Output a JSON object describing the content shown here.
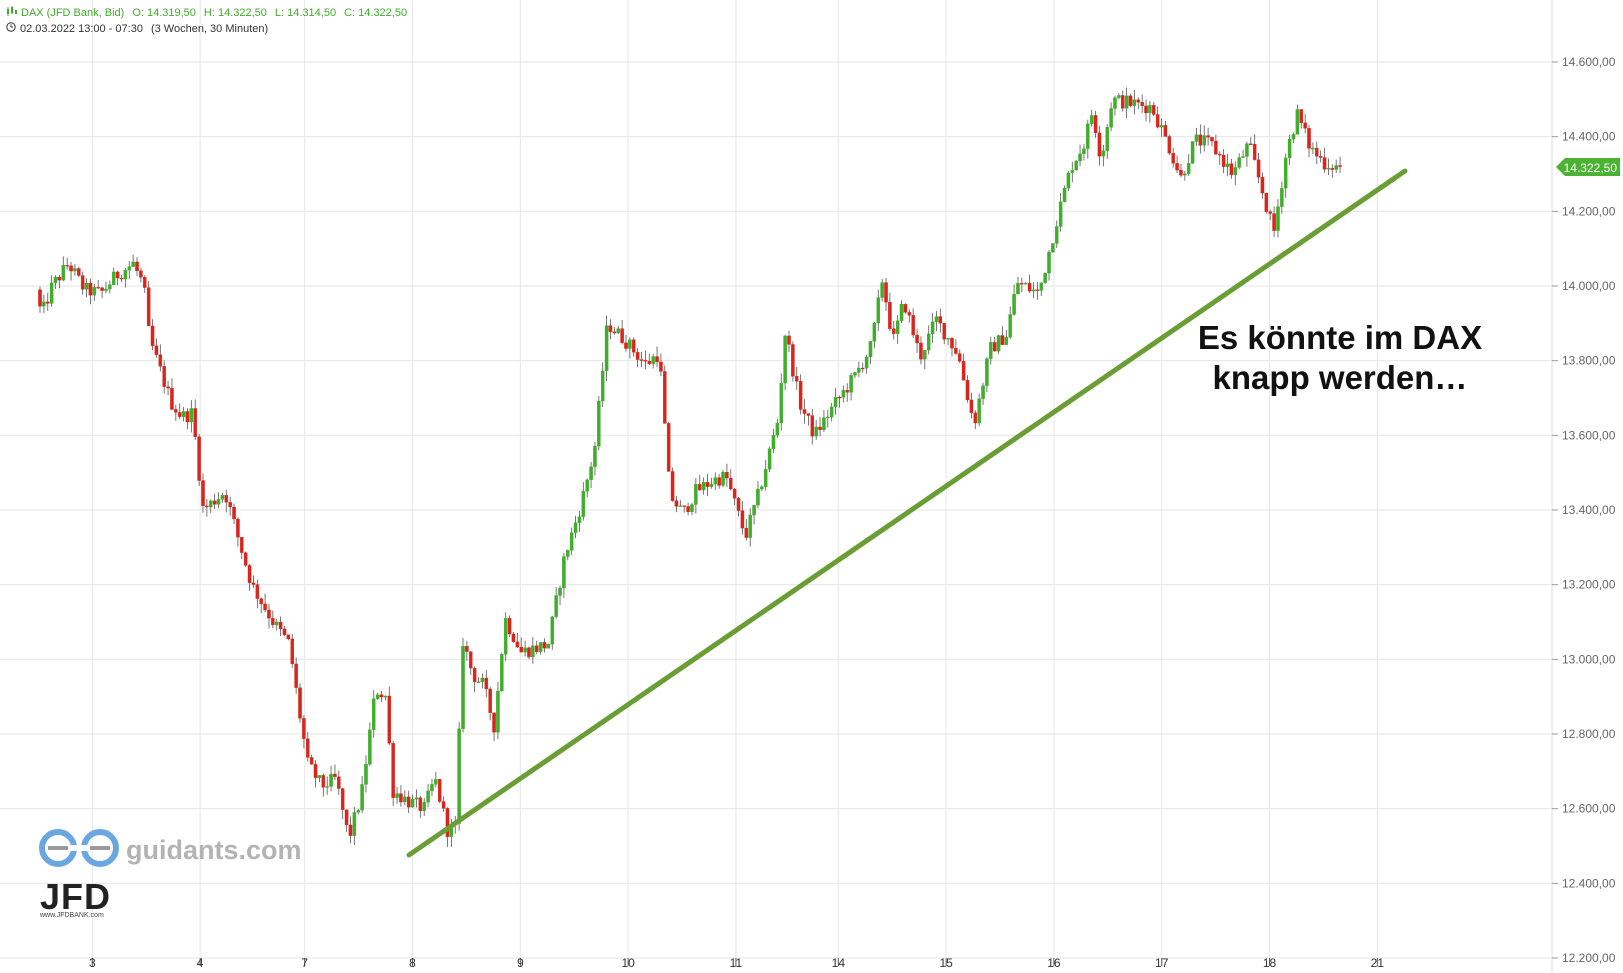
{
  "header": {
    "icon": "candlestick-chart-icon",
    "instrument": "DAX (JFD Bank, Bid)",
    "open": "O: 14.319,50",
    "high": "H: 14.322,50",
    "low": "L: 14.314,50",
    "close": "C: 14.322,50",
    "clock_icon": "clock-icon",
    "range": "02.03.2022 13:00 - 07:30",
    "period": "(3 Wochen, 30 Minuten)"
  },
  "annotation": {
    "line1": "Es könnte im DAX",
    "line2": "knapp werden…"
  },
  "watermark": {
    "site": "guidants.com",
    "brand": "JFD",
    "brand_sub": "www.JFDBANK.com"
  },
  "colors": {
    "up": "#3fae2a",
    "down": "#d9261c",
    "trendline": "#6a9e35",
    "grid": "#e6e6e6",
    "price_tag": "#4cb233"
  },
  "chart_data": {
    "type": "candlestick",
    "title": "DAX (JFD Bank, Bid)",
    "xlabel": "",
    "ylabel": "",
    "ylim": [
      12200,
      14700
    ],
    "y_ticks": [
      12200,
      12400,
      12600,
      12800,
      13000,
      13200,
      13400,
      13600,
      13800,
      14000,
      14200,
      14400,
      14600
    ],
    "y_tick_labels": [
      "12.200,00",
      "12.400,00",
      "12.600,00",
      "12.800,00",
      "13.000,00",
      "13.200,00",
      "13.400,00",
      "13.600,00",
      "13.800,00",
      "14.000,00",
      "14.200,00",
      "14.400,00",
      "14.600,00"
    ],
    "x_day_labels": [
      "3",
      "4",
      "7",
      "8",
      "9",
      "10",
      "11",
      "14",
      "15",
      "16",
      "17",
      "18",
      "21"
    ],
    "x_day_index": [
      0.43,
      1.43,
      2.4,
      3.4,
      4.4,
      5.4,
      6.4,
      7.35,
      8.35,
      9.35,
      10.35,
      11.35,
      12.35
    ],
    "last_price": 14322.5,
    "last_price_label": "14.322,50",
    "grid": true,
    "path_keypoints": [
      [
        0.0,
        13990
      ],
      [
        0.05,
        13920
      ],
      [
        0.15,
        14000
      ],
      [
        0.3,
        14060
      ],
      [
        0.45,
        13990
      ],
      [
        0.6,
        13980
      ],
      [
        0.75,
        14030
      ],
      [
        0.9,
        14060
      ],
      [
        1.0,
        14000
      ],
      [
        1.05,
        13860
      ],
      [
        1.25,
        13690
      ],
      [
        1.35,
        13650
      ],
      [
        1.45,
        13660
      ],
      [
        1.55,
        13400
      ],
      [
        1.75,
        13450
      ],
      [
        1.9,
        13300
      ],
      [
        2.0,
        13200
      ],
      [
        2.2,
        13100
      ],
      [
        2.35,
        13040
      ],
      [
        2.43,
        12880
      ],
      [
        2.52,
        12720
      ],
      [
        2.65,
        12660
      ],
      [
        2.78,
        12680
      ],
      [
        2.9,
        12520
      ],
      [
        3.02,
        12640
      ],
      [
        3.15,
        12920
      ],
      [
        3.25,
        12900
      ],
      [
        3.3,
        12650
      ],
      [
        3.45,
        12620
      ],
      [
        3.6,
        12600
      ],
      [
        3.7,
        12680
      ],
      [
        3.82,
        12540
      ],
      [
        3.9,
        12550
      ],
      [
        3.95,
        13060
      ],
      [
        4.05,
        12960
      ],
      [
        4.15,
        12930
      ],
      [
        4.25,
        12820
      ],
      [
        4.35,
        13110
      ],
      [
        4.5,
        13020
      ],
      [
        4.75,
        13040
      ],
      [
        4.9,
        13270
      ],
      [
        5.05,
        13410
      ],
      [
        5.18,
        13560
      ],
      [
        5.3,
        13900
      ],
      [
        5.48,
        13850
      ],
      [
        5.65,
        13790
      ],
      [
        5.78,
        13820
      ],
      [
        5.88,
        13440
      ],
      [
        6.0,
        13390
      ],
      [
        6.12,
        13450
      ],
      [
        6.28,
        13480
      ],
      [
        6.4,
        13490
      ],
      [
        6.58,
        13330
      ],
      [
        6.7,
        13440
      ],
      [
        6.88,
        13640
      ],
      [
        6.95,
        13880
      ],
      [
        7.08,
        13690
      ],
      [
        7.22,
        13600
      ],
      [
        7.4,
        13680
      ],
      [
        7.6,
        13760
      ],
      [
        7.75,
        13840
      ],
      [
        7.85,
        14020
      ],
      [
        7.95,
        13850
      ],
      [
        8.05,
        13960
      ],
      [
        8.2,
        13810
      ],
      [
        8.35,
        13910
      ],
      [
        8.55,
        13820
      ],
      [
        8.7,
        13630
      ],
      [
        8.85,
        13830
      ],
      [
        9.0,
        13870
      ],
      [
        9.1,
        14010
      ],
      [
        9.3,
        13980
      ],
      [
        9.48,
        14190
      ],
      [
        9.6,
        14320
      ],
      [
        9.72,
        14380
      ],
      [
        9.8,
        14470
      ],
      [
        9.88,
        14340
      ],
      [
        9.98,
        14500
      ],
      [
        10.15,
        14490
      ],
      [
        10.35,
        14480
      ],
      [
        10.5,
        14380
      ],
      [
        10.62,
        14290
      ],
      [
        10.75,
        14390
      ],
      [
        10.9,
        14380
      ],
      [
        11.1,
        14300
      ],
      [
        11.25,
        14380
      ],
      [
        11.38,
        14250
      ],
      [
        11.48,
        14140
      ],
      [
        11.6,
        14360
      ],
      [
        11.7,
        14460
      ],
      [
        11.82,
        14370
      ],
      [
        11.95,
        14330
      ],
      [
        12.08,
        14319
      ]
    ]
  }
}
